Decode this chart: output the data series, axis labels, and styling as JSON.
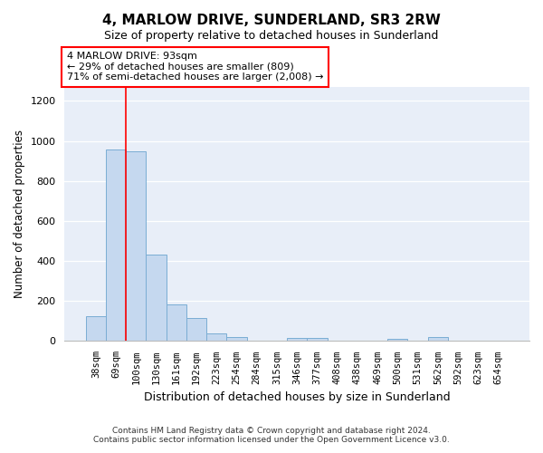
{
  "title": "4, MARLOW DRIVE, SUNDERLAND, SR3 2RW",
  "subtitle": "Size of property relative to detached houses in Sunderland",
  "xlabel": "Distribution of detached houses by size in Sunderland",
  "ylabel": "Number of detached properties",
  "bar_color": "#c5d8ef",
  "bar_edge_color": "#7aadd4",
  "background_color": "#e8eef8",
  "plot_bg_color": "#e8eef8",
  "grid_color": "#ffffff",
  "categories": [
    "38sqm",
    "69sqm",
    "100sqm",
    "130sqm",
    "161sqm",
    "192sqm",
    "223sqm",
    "254sqm",
    "284sqm",
    "315sqm",
    "346sqm",
    "377sqm",
    "408sqm",
    "438sqm",
    "469sqm",
    "500sqm",
    "531sqm",
    "562sqm",
    "592sqm",
    "623sqm",
    "654sqm"
  ],
  "values": [
    125,
    955,
    950,
    430,
    185,
    115,
    40,
    20,
    0,
    0,
    15,
    15,
    0,
    0,
    0,
    12,
    0,
    20,
    0,
    0,
    0
  ],
  "ylim": [
    0,
    1270
  ],
  "yticks": [
    0,
    200,
    400,
    600,
    800,
    1000,
    1200
  ],
  "red_line_bar_index": 2,
  "annotation_text": "4 MARLOW DRIVE: 93sqm\n← 29% of detached houses are smaller (809)\n71% of semi-detached houses are larger (2,008) →",
  "annotation_box_edge_color": "red",
  "red_line_color": "red",
  "footer_line1": "Contains HM Land Registry data © Crown copyright and database right 2024.",
  "footer_line2": "Contains public sector information licensed under the Open Government Licence v3.0."
}
